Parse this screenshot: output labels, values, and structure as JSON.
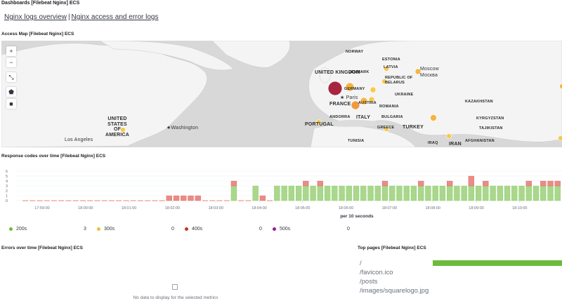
{
  "header": {
    "title": "Dashboards [Filebeat Nginx] ECS"
  },
  "links": [
    {
      "label": "Nginx logs overview"
    },
    {
      "label": "Nginx access and error logs"
    }
  ],
  "panels": {
    "map_title": "Access Map [Filebeat Nginx] ECS",
    "response_title": "Response codes over time [Filebeat Nginx] ECS",
    "errors_title": "Errors over time [Filebeat Nginx] ECS",
    "top_pages_title": "Top pages [Filebeat Nginx] ECS"
  },
  "map": {
    "controls": [
      "+",
      "−",
      "⤡",
      "⬟",
      "■"
    ],
    "labels": {
      "norway": "NORWAY",
      "estonia": "ESTONIA",
      "latvia": "LATVIA",
      "denmark": "DENMARK",
      "uk": "UNITED KINGDOM",
      "republic_belarus": "REPUBLIC OF BELARUS",
      "germany": "GERMANY",
      "ukraine": "UKRAINE",
      "france": "FRANCE",
      "austria": "AUSTRIA",
      "romania": "ROMANIA",
      "kazakhstan": "KAZAKHSTAN",
      "andorra": "ANDORRA",
      "bulgaria": "BULGARIA",
      "portugal": "PORTUGAL",
      "italy": "ITALY",
      "greece": "GREECE",
      "turkey": "TURKEY",
      "kyrgyzstan": "KYRGYZSTAN",
      "tajikistan": "TAJIKISTAN",
      "iraq": "IRAQ",
      "iran": "IRAN",
      "afghanistan": "AFGHANISTAN",
      "tunisia": "TUNISIA",
      "usa": "UNITED STATES OF AMERICA",
      "moscow": "Moscow",
      "moscow_ru": "Москва",
      "paris": "Paris",
      "washington": "Washington",
      "los_angeles": "Los Angeles"
    }
  },
  "chart_data": {
    "type": "bar",
    "stacked": true,
    "xlabel": "per 10 seconds",
    "ylim": [
      0,
      6
    ],
    "yticks": [
      "6",
      "5",
      "4",
      "3",
      "2",
      "1",
      "0"
    ],
    "xticks": [
      "17:59:00",
      "18:00:00",
      "18:01:00",
      "18:02:00",
      "18:03:00",
      "18:04:00",
      "18:05:00",
      "18:06:00",
      "18:07:00",
      "18:08:00",
      "18:09:00",
      "18:10:00"
    ],
    "series": [
      {
        "name": "200s",
        "color": "#54b399",
        "values": [
          0,
          0,
          0,
          0,
          0,
          0,
          0,
          0,
          0,
          0,
          0,
          0,
          0,
          0,
          0,
          0,
          0,
          0,
          0,
          0,
          0,
          0,
          0,
          0,
          0,
          0,
          0,
          0,
          0,
          3,
          0,
          0,
          3,
          0,
          0,
          3,
          3,
          3,
          3,
          3,
          3,
          3,
          3,
          3,
          3,
          3,
          3,
          3,
          3,
          3,
          3,
          3,
          3,
          3,
          3,
          3,
          3,
          3,
          3,
          3,
          3,
          3,
          3,
          3,
          3,
          3,
          3,
          3,
          3,
          3,
          3,
          3,
          3,
          3,
          3
        ]
      },
      {
        "name": "300s",
        "color": "#d6bf57",
        "values": [
          0,
          0,
          0,
          0,
          0,
          0,
          0,
          0,
          0,
          0,
          0,
          0,
          0,
          0,
          0,
          0,
          0,
          0,
          0,
          0,
          0,
          0,
          0,
          0,
          0,
          0,
          0,
          0,
          0,
          0,
          0,
          0,
          0,
          0,
          0,
          0,
          0,
          0,
          0,
          0,
          0,
          0,
          0,
          0,
          0,
          0,
          0,
          0,
          0,
          0,
          0,
          0,
          0,
          0,
          0,
          0,
          0,
          0,
          0,
          0,
          0,
          0,
          0,
          0,
          0,
          0,
          0,
          0,
          0,
          0,
          0,
          0,
          0,
          0,
          0
        ]
      },
      {
        "name": "400s",
        "color": "#e7664c",
        "values": [
          0,
          0,
          0,
          0,
          0,
          0,
          0,
          0,
          0,
          0,
          0,
          0,
          0,
          0,
          0,
          0,
          0,
          0,
          0,
          0,
          1,
          1,
          1,
          1,
          1,
          0,
          0,
          0,
          0,
          1,
          0,
          0,
          0,
          1,
          0,
          0,
          0,
          0,
          0,
          1,
          0,
          1,
          0,
          0,
          0,
          0,
          0,
          0,
          0,
          0,
          1,
          0,
          0,
          0,
          0,
          1,
          0,
          0,
          0,
          1,
          0,
          0,
          2,
          0,
          1,
          0,
          0,
          0,
          0,
          0,
          1,
          0,
          1,
          1,
          1
        ]
      },
      {
        "name": "500s",
        "color": "#9170b8",
        "values": [
          0,
          0,
          0,
          0,
          0,
          0,
          0,
          0,
          0,
          0,
          0,
          0,
          0,
          0,
          0,
          0,
          0,
          0,
          0,
          0,
          0,
          0,
          0,
          0,
          0,
          0,
          0,
          0,
          0,
          0,
          0,
          0,
          0,
          0,
          0,
          0,
          0,
          0,
          0,
          0,
          0,
          0,
          0,
          0,
          0,
          0,
          0,
          0,
          0,
          0,
          0,
          0,
          0,
          0,
          0,
          0,
          0,
          0,
          0,
          0,
          0,
          0,
          0,
          0,
          0,
          0,
          0,
          0,
          0,
          0,
          0,
          0,
          0,
          0,
          0
        ]
      }
    ]
  },
  "legend": [
    {
      "label": "200s",
      "value": "3",
      "color": "#6dbb3c"
    },
    {
      "label": "300s",
      "value": "0",
      "color": "#e4c13a"
    },
    {
      "label": "400s",
      "value": "0",
      "color": "#c4342a"
    },
    {
      "label": "500s",
      "value": "0",
      "color": "#9b1c8c"
    }
  ],
  "errors": {
    "no_data": "No data to display for the selected metrics"
  },
  "top_pages": [
    "/",
    "/favicon.ico",
    "/posts",
    "/images/squarelogo.jpg"
  ]
}
